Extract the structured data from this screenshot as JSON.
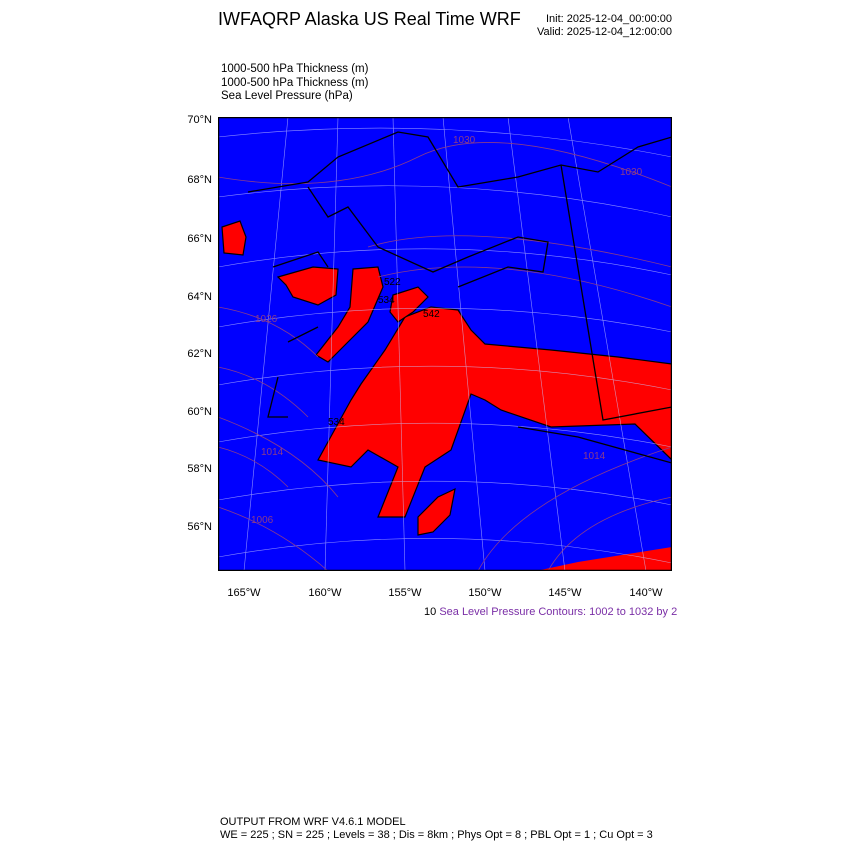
{
  "header": {
    "title": "IWFAQRP Alaska US Real Time WRF",
    "init": "Init: 2025-12-04_00:00:00",
    "valid": "Valid: 2025-12-04_12:00:00"
  },
  "fields": [
    "1000-500 hPa Thickness   (m)",
    "1000-500 hPa Thickness   (m)",
    "Sea Level Pressure   (hPa)"
  ],
  "map": {
    "colors": {
      "below_threshold": "#0000ff",
      "above_threshold": "#ff0000",
      "slp_contour": "#8a3c8a",
      "coastline": "#000000",
      "grid": "#b0b0ff"
    },
    "lat_labels": [
      "70°N",
      "68°N",
      "66°N",
      "64°N",
      "62°N",
      "60°N",
      "58°N",
      "56°N"
    ],
    "lon_labels": [
      "165°W",
      "160°W",
      "155°W",
      "150°W",
      "145°W",
      "140°W"
    ],
    "contour_labels": [
      "1030",
      "1026",
      "1014",
      "1006",
      "1014",
      "1030",
      "534",
      "522",
      "542",
      "534"
    ]
  },
  "legend": {
    "prefix": "10",
    "text": "Sea Level Pressure Contours: 1002 to 1032 by 2"
  },
  "footer": {
    "line1": "OUTPUT FROM WRF V4.6.1 MODEL",
    "line2": "WE = 225 ; SN = 225 ; Levels = 38 ; Dis = 8km ; Phys Opt = 8 ; PBL Opt = 1 ; Cu Opt = 3"
  }
}
